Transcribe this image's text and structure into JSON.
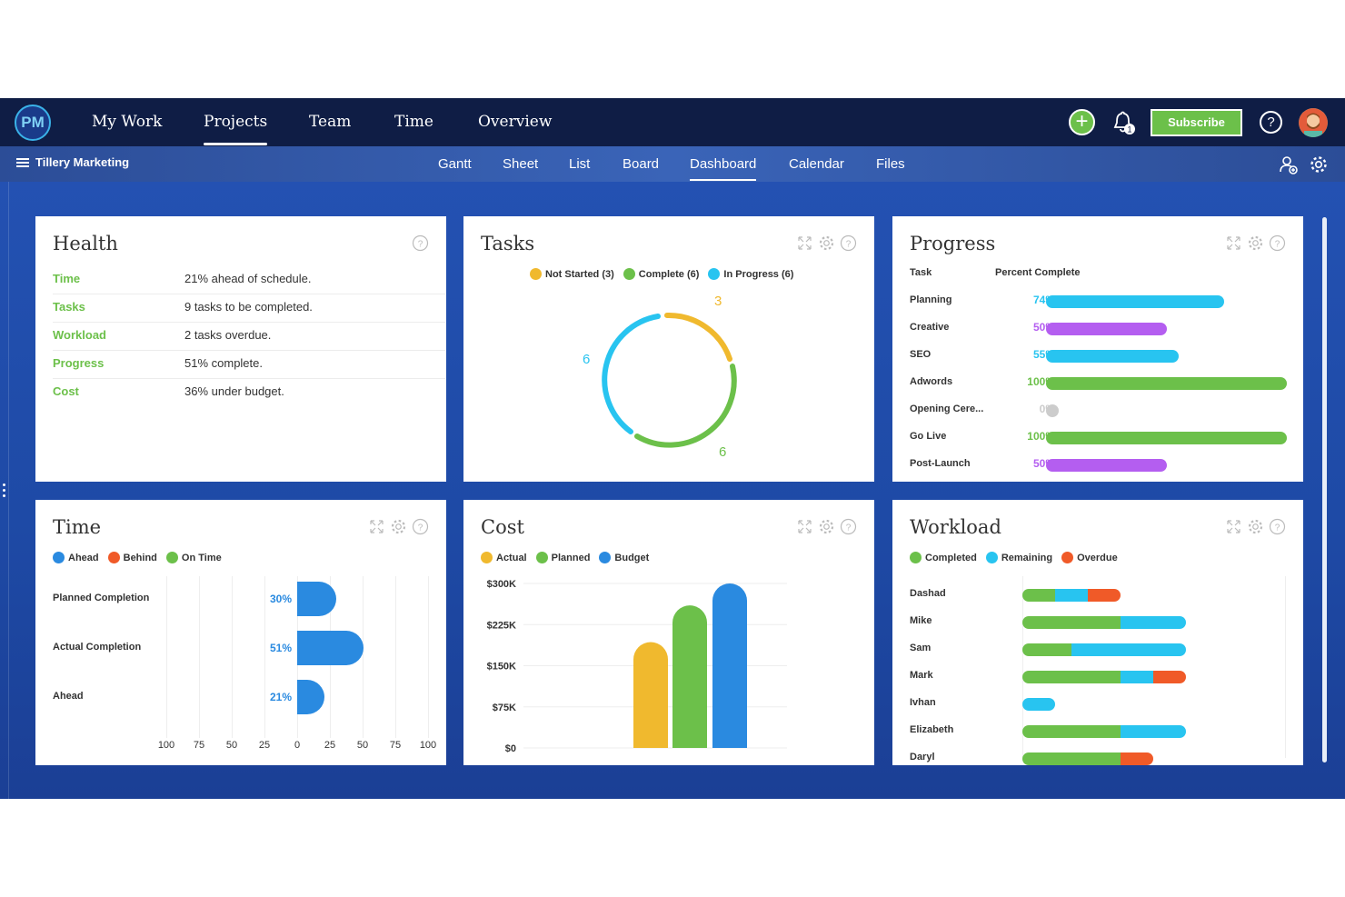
{
  "topbar": {
    "logo": "PM",
    "nav": [
      "My Work",
      "Projects",
      "Team",
      "Time",
      "Overview"
    ],
    "active_nav": "Projects",
    "subscribe_label": "Subscribe",
    "help_label": "?",
    "add_label": "+",
    "notification_count": "1"
  },
  "subbar": {
    "project_name": "Tillery Marketing",
    "tabs": [
      "Gantt",
      "Sheet",
      "List",
      "Board",
      "Dashboard",
      "Calendar",
      "Files"
    ],
    "active_tab": "Dashboard"
  },
  "health": {
    "title": "Health",
    "rows": [
      {
        "label": "Time",
        "value": "21% ahead of schedule."
      },
      {
        "label": "Tasks",
        "value": "9 tasks to be completed."
      },
      {
        "label": "Workload",
        "value": "2 tasks overdue."
      },
      {
        "label": "Progress",
        "value": "51% complete."
      },
      {
        "label": "Cost",
        "value": "36% under budget."
      }
    ]
  },
  "tasks": {
    "title": "Tasks",
    "legend": [
      {
        "label": "Not Started (3)",
        "color": "#f0b92e"
      },
      {
        "label": "Complete (6)",
        "color": "#6cc04a"
      },
      {
        "label": "In Progress (6)",
        "color": "#28c4f0"
      }
    ],
    "labels": {
      "not_started": "3",
      "in_progress": "6",
      "complete": "6"
    }
  },
  "progress": {
    "title": "Progress",
    "col_task": "Task",
    "col_percent": "Percent Complete",
    "rows": [
      {
        "task": "Planning",
        "pct": "74%",
        "value": 74,
        "color": "#28c4f0"
      },
      {
        "task": "Creative",
        "pct": "50%",
        "value": 50,
        "color": "#b45ef0"
      },
      {
        "task": "SEO",
        "pct": "55%",
        "value": 55,
        "color": "#28c4f0"
      },
      {
        "task": "Adwords",
        "pct": "100%",
        "value": 100,
        "color": "#6cc04a"
      },
      {
        "task": "Opening Cere...",
        "pct": "0%",
        "value": 0,
        "color": "#cccccc"
      },
      {
        "task": "Go Live",
        "pct": "100%",
        "value": 100,
        "color": "#6cc04a"
      },
      {
        "task": "Post-Launch",
        "pct": "50%",
        "value": 50,
        "color": "#b45ef0"
      }
    ]
  },
  "time": {
    "title": "Time",
    "legend": [
      {
        "label": "Ahead",
        "color": "#2a8ae0"
      },
      {
        "label": "Behind",
        "color": "#f05a28"
      },
      {
        "label": "On Time",
        "color": "#6cc04a"
      }
    ],
    "rows": [
      {
        "label": "Planned Completion",
        "pct": "30%",
        "value": 30
      },
      {
        "label": "Actual Completion",
        "pct": "51%",
        "value": 51
      },
      {
        "label": "Ahead",
        "pct": "21%",
        "value": 21
      }
    ],
    "ticks": [
      "100",
      "75",
      "50",
      "25",
      "0",
      "25",
      "50",
      "75",
      "100"
    ]
  },
  "cost": {
    "title": "Cost",
    "legend": [
      {
        "label": "Actual",
        "color": "#f0b92e"
      },
      {
        "label": "Planned",
        "color": "#6cc04a"
      },
      {
        "label": "Budget",
        "color": "#2a8ae0"
      }
    ],
    "y_ticks": [
      "$300K",
      "$225K",
      "$150K",
      "$75K",
      "$0"
    ],
    "chart_data": {
      "type": "bar",
      "categories": [
        "Actual",
        "Planned",
        "Budget"
      ],
      "values": [
        193,
        260,
        300
      ],
      "ylim": [
        0,
        300
      ]
    }
  },
  "workload": {
    "title": "Workload",
    "legend": [
      {
        "label": "Completed",
        "color": "#6cc04a"
      },
      {
        "label": "Remaining",
        "color": "#28c4f0"
      },
      {
        "label": "Overdue",
        "color": "#f05a28"
      }
    ],
    "rows": [
      {
        "name": "Dashad",
        "completed": 2,
        "remaining": 2,
        "overdue": 2
      },
      {
        "name": "Mike",
        "completed": 6,
        "remaining": 4,
        "overdue": 0
      },
      {
        "name": "Sam",
        "completed": 3,
        "remaining": 7,
        "overdue": 0
      },
      {
        "name": "Mark",
        "completed": 6,
        "remaining": 2,
        "overdue": 2
      },
      {
        "name": "Ivhan",
        "completed": 0,
        "remaining": 2,
        "overdue": 0
      },
      {
        "name": "Elizabeth",
        "completed": 6,
        "remaining": 4,
        "overdue": 0
      },
      {
        "name": "Daryl",
        "completed": 6,
        "remaining": 0,
        "overdue": 2
      }
    ]
  }
}
